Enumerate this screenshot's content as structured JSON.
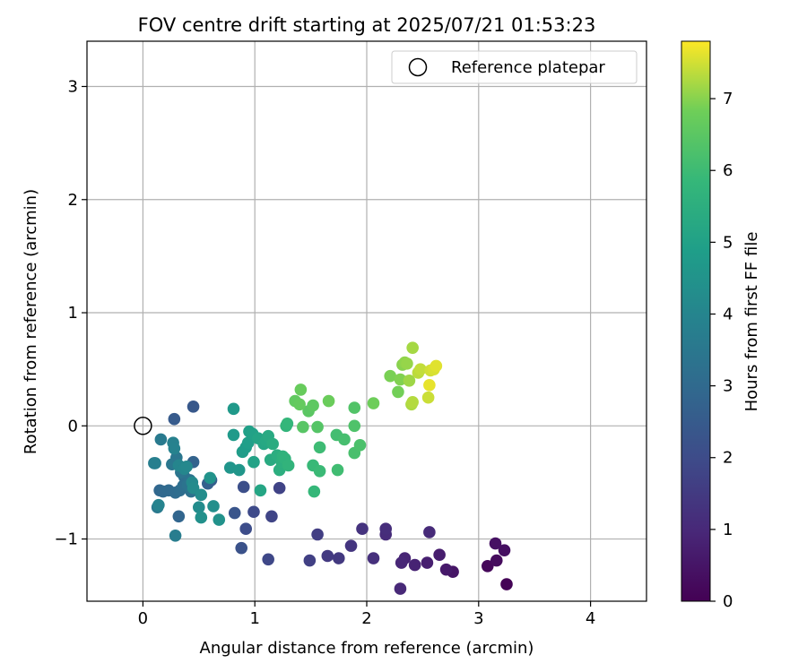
{
  "chart_data": {
    "type": "scatter",
    "title": "FOV centre drift starting at 2025/07/21 01:53:23",
    "xlabel": "Angular distance from reference (arcmin)",
    "ylabel": "Rotation from reference (arcmin)",
    "xlim": [
      -0.5,
      4.5
    ],
    "ylim": [
      -1.55,
      3.4
    ],
    "xticks": [
      0,
      1,
      2,
      3,
      4
    ],
    "yticks": [
      -1,
      0,
      1,
      2,
      3
    ],
    "xtick_labels": [
      "0",
      "1",
      "2",
      "3",
      "4"
    ],
    "ytick_labels": [
      "−1",
      "0",
      "1",
      "2",
      "3"
    ],
    "grid": true,
    "legend": {
      "position": "top-right",
      "entries": [
        {
          "label": "Reference platepar",
          "marker": "open-circle"
        }
      ]
    },
    "reference_point": {
      "x": 0,
      "y": 0,
      "label": "Reference platepar"
    },
    "colorbar": {
      "label": "Hours from first FF file",
      "colormap": "viridis",
      "range": [
        0,
        7.8
      ],
      "ticks": [
        0,
        1,
        2,
        3,
        4,
        5,
        6,
        7
      ],
      "tick_labels": [
        "0",
        "1",
        "2",
        "3",
        "4",
        "5",
        "6",
        "7"
      ]
    },
    "points": [
      {
        "x": 3.25,
        "y": -1.4,
        "hours": 0.05
      },
      {
        "x": 3.08,
        "y": -1.24,
        "hours": 0.15
      },
      {
        "x": 3.16,
        "y": -1.19,
        "hours": 0.25
      },
      {
        "x": 3.23,
        "y": -1.1,
        "hours": 0.35
      },
      {
        "x": 3.15,
        "y": -1.04,
        "hours": 0.4
      },
      {
        "x": 2.77,
        "y": -1.29,
        "hours": 0.5
      },
      {
        "x": 2.71,
        "y": -1.27,
        "hours": 0.6
      },
      {
        "x": 2.65,
        "y": -1.14,
        "hours": 0.7
      },
      {
        "x": 2.54,
        "y": -1.21,
        "hours": 0.75
      },
      {
        "x": 2.43,
        "y": -1.23,
        "hours": 0.85
      },
      {
        "x": 2.34,
        "y": -1.17,
        "hours": 0.9
      },
      {
        "x": 2.31,
        "y": -1.21,
        "hours": 0.95
      },
      {
        "x": 2.3,
        "y": -1.44,
        "hours": 1.0
      },
      {
        "x": 2.56,
        "y": -0.94,
        "hours": 1.05
      },
      {
        "x": 2.17,
        "y": -0.96,
        "hours": 1.1
      },
      {
        "x": 2.17,
        "y": -0.91,
        "hours": 1.15
      },
      {
        "x": 2.06,
        "y": -1.17,
        "hours": 1.2
      },
      {
        "x": 1.96,
        "y": -0.91,
        "hours": 1.3
      },
      {
        "x": 1.86,
        "y": -1.06,
        "hours": 1.35
      },
      {
        "x": 1.75,
        "y": -1.17,
        "hours": 1.45
      },
      {
        "x": 1.65,
        "y": -1.15,
        "hours": 1.5
      },
      {
        "x": 1.56,
        "y": -0.96,
        "hours": 1.6
      },
      {
        "x": 1.49,
        "y": -1.19,
        "hours": 1.65
      },
      {
        "x": 1.22,
        "y": -0.55,
        "hours": 1.75
      },
      {
        "x": 1.15,
        "y": -0.8,
        "hours": 1.8
      },
      {
        "x": 1.12,
        "y": -1.18,
        "hours": 1.9
      },
      {
        "x": 0.99,
        "y": -0.76,
        "hours": 1.95
      },
      {
        "x": 0.92,
        "y": -0.91,
        "hours": 2.05
      },
      {
        "x": 0.9,
        "y": -0.54,
        "hours": 2.1
      },
      {
        "x": 0.88,
        "y": -1.08,
        "hours": 2.2
      },
      {
        "x": 0.82,
        "y": -0.77,
        "hours": 2.3
      },
      {
        "x": 0.45,
        "y": 0.17,
        "hours": 2.4
      },
      {
        "x": 0.28,
        "y": 0.06,
        "hours": 2.5
      },
      {
        "x": 0.61,
        "y": -0.48,
        "hours": 2.6
      },
      {
        "x": 0.58,
        "y": -0.51,
        "hours": 2.65
      },
      {
        "x": 0.45,
        "y": -0.32,
        "hours": 2.75
      },
      {
        "x": 0.32,
        "y": -0.8,
        "hours": 2.85
      },
      {
        "x": 0.15,
        "y": -0.57,
        "hours": 2.9
      },
      {
        "x": 0.18,
        "y": -0.58,
        "hours": 2.95
      },
      {
        "x": 0.23,
        "y": -0.57,
        "hours": 3.0
      },
      {
        "x": 0.29,
        "y": -0.59,
        "hours": 3.05
      },
      {
        "x": 0.33,
        "y": -0.57,
        "hours": 3.1
      },
      {
        "x": 0.37,
        "y": -0.45,
        "hours": 3.15
      },
      {
        "x": 0.36,
        "y": -0.53,
        "hours": 3.2
      },
      {
        "x": 0.43,
        "y": -0.58,
        "hours": 3.25
      },
      {
        "x": 0.42,
        "y": -0.48,
        "hours": 3.3
      },
      {
        "x": 0.4,
        "y": -0.52,
        "hours": 3.35
      },
      {
        "x": 0.34,
        "y": -0.41,
        "hours": 3.4
      },
      {
        "x": 0.3,
        "y": -0.28,
        "hours": 3.45
      },
      {
        "x": 0.26,
        "y": -0.34,
        "hours": 3.5
      },
      {
        "x": 0.13,
        "y": -0.72,
        "hours": 3.55
      },
      {
        "x": 0.16,
        "y": -0.12,
        "hours": 3.6
      },
      {
        "x": 0.29,
        "y": -0.97,
        "hours": 3.7
      },
      {
        "x": 0.1,
        "y": -0.33,
        "hours": 3.75
      },
      {
        "x": 0.11,
        "y": -0.33,
        "hours": 3.8
      },
      {
        "x": 0.27,
        "y": -0.15,
        "hours": 3.85
      },
      {
        "x": 0.28,
        "y": -0.2,
        "hours": 3.9
      },
      {
        "x": 0.14,
        "y": -0.7,
        "hours": 3.95
      },
      {
        "x": 0.32,
        "y": -0.35,
        "hours": 4.0
      },
      {
        "x": 0.37,
        "y": -0.38,
        "hours": 4.05
      },
      {
        "x": 0.39,
        "y": -0.36,
        "hours": 4.1
      },
      {
        "x": 0.44,
        "y": -0.5,
        "hours": 4.15
      },
      {
        "x": 0.45,
        "y": -0.55,
        "hours": 4.2
      },
      {
        "x": 0.5,
        "y": -0.72,
        "hours": 4.25
      },
      {
        "x": 0.52,
        "y": -0.61,
        "hours": 4.3
      },
      {
        "x": 0.63,
        "y": -0.71,
        "hours": 4.35
      },
      {
        "x": 0.52,
        "y": -0.81,
        "hours": 4.4
      },
      {
        "x": 0.68,
        "y": -0.83,
        "hours": 4.45
      },
      {
        "x": 0.6,
        "y": -0.46,
        "hours": 4.5
      },
      {
        "x": 0.78,
        "y": -0.37,
        "hours": 4.55
      },
      {
        "x": 0.86,
        "y": -0.39,
        "hours": 4.6
      },
      {
        "x": 0.81,
        "y": 0.15,
        "hours": 4.7
      },
      {
        "x": 0.81,
        "y": -0.08,
        "hours": 4.75
      },
      {
        "x": 0.89,
        "y": -0.23,
        "hours": 4.8
      },
      {
        "x": 0.92,
        "y": -0.19,
        "hours": 4.85
      },
      {
        "x": 0.94,
        "y": -0.15,
        "hours": 4.9
      },
      {
        "x": 0.95,
        "y": -0.05,
        "hours": 4.95
      },
      {
        "x": 0.98,
        "y": -0.07,
        "hours": 5.0
      },
      {
        "x": 0.99,
        "y": -0.32,
        "hours": 5.05
      },
      {
        "x": 1.03,
        "y": -0.11,
        "hours": 5.1
      },
      {
        "x": 1.05,
        "y": -0.57,
        "hours": 5.15
      },
      {
        "x": 1.08,
        "y": -0.16,
        "hours": 5.2
      },
      {
        "x": 1.1,
        "y": -0.13,
        "hours": 5.25
      },
      {
        "x": 1.12,
        "y": -0.09,
        "hours": 5.3
      },
      {
        "x": 1.14,
        "y": -0.3,
        "hours": 5.35
      },
      {
        "x": 1.16,
        "y": -0.16,
        "hours": 5.4
      },
      {
        "x": 1.2,
        "y": -0.26,
        "hours": 5.45
      },
      {
        "x": 1.22,
        "y": -0.39,
        "hours": 5.5
      },
      {
        "x": 1.24,
        "y": -0.32,
        "hours": 5.55
      },
      {
        "x": 1.25,
        "y": -0.27,
        "hours": 5.6
      },
      {
        "x": 1.27,
        "y": -0.29,
        "hours": 5.65
      },
      {
        "x": 1.3,
        "y": -0.35,
        "hours": 5.7
      },
      {
        "x": 1.28,
        "y": 0.0,
        "hours": 5.75
      },
      {
        "x": 1.29,
        "y": 0.02,
        "hours": 5.8
      },
      {
        "x": 1.53,
        "y": -0.58,
        "hours": 5.85
      },
      {
        "x": 1.52,
        "y": -0.35,
        "hours": 5.9
      },
      {
        "x": 1.58,
        "y": -0.4,
        "hours": 5.95
      },
      {
        "x": 1.58,
        "y": -0.19,
        "hours": 6.0
      },
      {
        "x": 1.74,
        "y": -0.39,
        "hours": 6.05
      },
      {
        "x": 1.73,
        "y": -0.08,
        "hours": 6.1
      },
      {
        "x": 1.8,
        "y": -0.12,
        "hours": 6.15
      },
      {
        "x": 1.89,
        "y": -0.24,
        "hours": 6.2
      },
      {
        "x": 1.94,
        "y": -0.17,
        "hours": 6.25
      },
      {
        "x": 1.89,
        "y": 0.0,
        "hours": 6.3
      },
      {
        "x": 1.89,
        "y": 0.16,
        "hours": 6.35
      },
      {
        "x": 1.56,
        "y": -0.01,
        "hours": 6.4
      },
      {
        "x": 1.43,
        "y": -0.01,
        "hours": 6.45
      },
      {
        "x": 1.48,
        "y": 0.13,
        "hours": 6.5
      },
      {
        "x": 1.52,
        "y": 0.18,
        "hours": 6.55
      },
      {
        "x": 1.36,
        "y": 0.22,
        "hours": 6.6
      },
      {
        "x": 1.4,
        "y": 0.19,
        "hours": 6.65
      },
      {
        "x": 1.41,
        "y": 0.32,
        "hours": 6.7
      },
      {
        "x": 1.66,
        "y": 0.22,
        "hours": 6.75
      },
      {
        "x": 2.06,
        "y": 0.2,
        "hours": 6.8
      },
      {
        "x": 2.28,
        "y": 0.3,
        "hours": 6.85
      },
      {
        "x": 2.21,
        "y": 0.44,
        "hours": 6.9
      },
      {
        "x": 2.3,
        "y": 0.41,
        "hours": 6.95
      },
      {
        "x": 2.32,
        "y": 0.54,
        "hours": 7.0
      },
      {
        "x": 2.34,
        "y": 0.56,
        "hours": 7.05
      },
      {
        "x": 2.36,
        "y": 0.55,
        "hours": 7.1
      },
      {
        "x": 2.38,
        "y": 0.4,
        "hours": 7.15
      },
      {
        "x": 2.41,
        "y": 0.69,
        "hours": 7.2
      },
      {
        "x": 2.4,
        "y": 0.19,
        "hours": 7.25
      },
      {
        "x": 2.41,
        "y": 0.21,
        "hours": 7.3
      },
      {
        "x": 2.46,
        "y": 0.47,
        "hours": 7.35
      },
      {
        "x": 2.48,
        "y": 0.5,
        "hours": 7.4
      },
      {
        "x": 2.55,
        "y": 0.25,
        "hours": 7.45
      },
      {
        "x": 2.57,
        "y": 0.49,
        "hours": 7.5
      },
      {
        "x": 2.6,
        "y": 0.5,
        "hours": 7.55
      },
      {
        "x": 2.62,
        "y": 0.53,
        "hours": 7.6
      },
      {
        "x": 2.56,
        "y": 0.36,
        "hours": 7.65
      }
    ]
  }
}
